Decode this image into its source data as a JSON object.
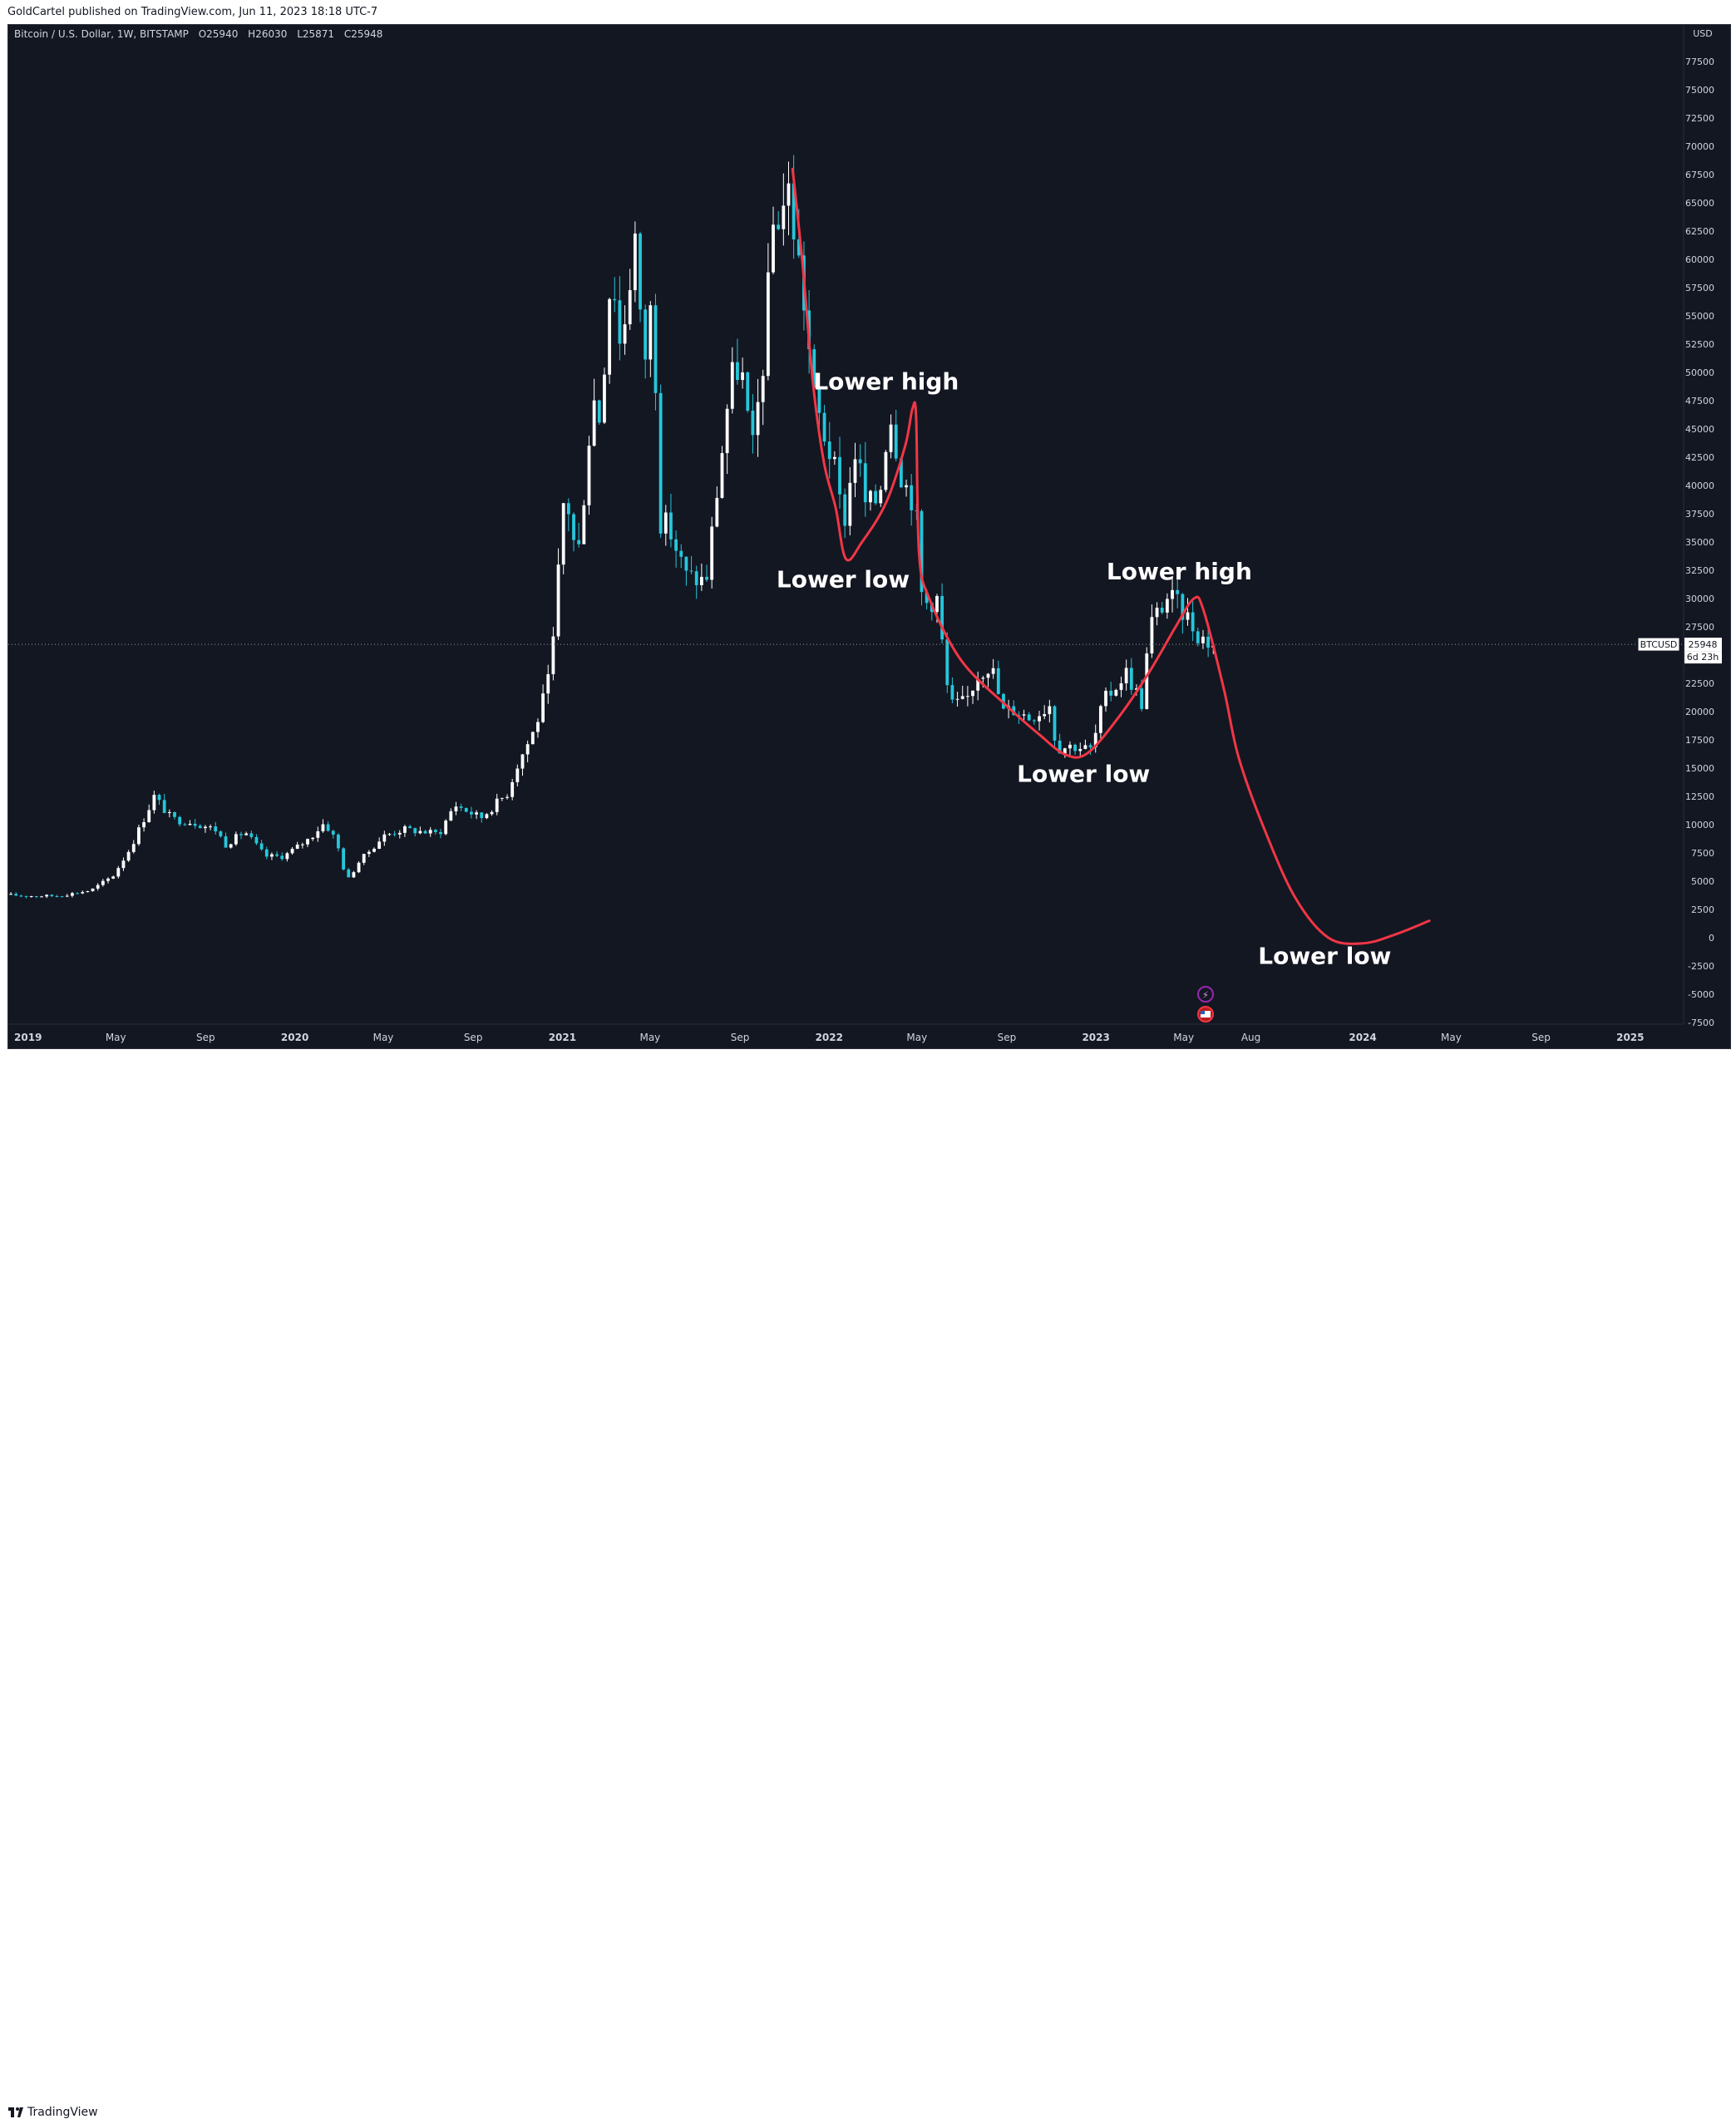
{
  "header": {
    "attribution": "GoldCartel published on TradingView.com, Jun 11, 2023 18:18 UTC-7"
  },
  "symbol": {
    "name": "Bitcoin / U.S. Dollar, 1W, BITSTAMP",
    "open": "O25940",
    "high": "H26030",
    "low": "L25871",
    "close": "C25948"
  },
  "price_label": {
    "ticker": "BTCUSD",
    "price": "25948",
    "countdown": "6d 23h"
  },
  "footer": {
    "brand": "TradingView"
  },
  "colors": {
    "background": "#131722",
    "up_candle": "#ffffff",
    "down_candle": "#26c6da",
    "projection": "#f23645",
    "text": "#d1d4dc"
  },
  "chart_data": {
    "type": "candlestick",
    "timeframe": "1W",
    "currency": "USD",
    "ylim": [
      -7500,
      80000
    ],
    "y_ticks": [
      -7500,
      -5000,
      -2500,
      0,
      2500,
      5000,
      7500,
      10000,
      12500,
      15000,
      17500,
      20000,
      22500,
      25000,
      27500,
      30000,
      32500,
      35000,
      37500,
      40000,
      42500,
      45000,
      47500,
      50000,
      52500,
      55000,
      57500,
      60000,
      62500,
      65000,
      67500,
      70000,
      72500,
      75000,
      77500
    ],
    "x_ticks": [
      "2019",
      "May",
      "Sep",
      "2020",
      "May",
      "Sep",
      "2021",
      "May",
      "Sep",
      "2022",
      "May",
      "Sep",
      "2023",
      "May",
      "Aug",
      "2024",
      "May",
      "Sep",
      "2025"
    ],
    "x_tick_dates": [
      "2019-01-01",
      "2019-05-01",
      "2019-09-01",
      "2020-01-01",
      "2020-05-01",
      "2020-09-01",
      "2021-01-01",
      "2021-05-01",
      "2021-09-01",
      "2022-01-01",
      "2022-05-01",
      "2022-09-01",
      "2023-01-01",
      "2023-05-01",
      "2023-08-01",
      "2024-01-01",
      "2024-05-01",
      "2024-09-01",
      "2025-01-01"
    ],
    "x_range": [
      "2018-12-05",
      "2025-03-15"
    ],
    "current_price": 25948,
    "price_anchors": [
      [
        "2018-12-05",
        3800
      ],
      [
        "2019-01-01",
        3700
      ],
      [
        "2019-02-15",
        3700
      ],
      [
        "2019-04-01",
        4200
      ],
      [
        "2019-05-01",
        5500
      ],
      [
        "2019-05-25",
        8000
      ],
      [
        "2019-06-26",
        12500
      ],
      [
        "2019-07-20",
        10500
      ],
      [
        "2019-08-20",
        10200
      ],
      [
        "2019-09-20",
        9500
      ],
      [
        "2019-10-01",
        8200
      ],
      [
        "2019-10-28",
        9400
      ],
      [
        "2019-11-25",
        7200
      ],
      [
        "2019-12-20",
        7200
      ],
      [
        "2020-01-25",
        8800
      ],
      [
        "2020-02-14",
        10200
      ],
      [
        "2020-03-01",
        8600
      ],
      [
        "2020-03-16",
        5000
      ],
      [
        "2020-04-01",
        6700
      ],
      [
        "2020-05-05",
        9000
      ],
      [
        "2020-06-01",
        9600
      ],
      [
        "2020-07-20",
        9200
      ],
      [
        "2020-08-10",
        11800
      ],
      [
        "2020-09-15",
        10600
      ],
      [
        "2020-10-21",
        12800
      ],
      [
        "2020-11-05",
        15500
      ],
      [
        "2020-11-28",
        18500
      ],
      [
        "2020-12-20",
        23500
      ],
      [
        "2021-01-08",
        40000
      ],
      [
        "2021-01-25",
        33000
      ],
      [
        "2021-02-15",
        48000
      ],
      [
        "2021-02-25",
        46000
      ],
      [
        "2021-03-13",
        60000
      ],
      [
        "2021-03-25",
        52000
      ],
      [
        "2021-04-14",
        62000
      ],
      [
        "2021-04-25",
        50000
      ],
      [
        "2021-05-08",
        57000
      ],
      [
        "2021-05-19",
        37000
      ],
      [
        "2021-06-01",
        36000
      ],
      [
        "2021-06-22",
        32000
      ],
      [
        "2021-07-20",
        31500
      ],
      [
        "2021-08-05",
        40000
      ],
      [
        "2021-08-22",
        49000
      ],
      [
        "2021-09-05",
        51000
      ],
      [
        "2021-09-21",
        42500
      ],
      [
        "2021-10-06",
        51000
      ],
      [
        "2021-10-20",
        63000
      ],
      [
        "2021-11-10",
        66000
      ],
      [
        "2021-11-30",
        57000
      ],
      [
        "2021-12-15",
        47500
      ],
      [
        "2022-01-10",
        42000
      ],
      [
        "2022-01-24",
        36500
      ],
      [
        "2022-02-10",
        43500
      ],
      [
        "2022-02-24",
        38000
      ],
      [
        "2022-03-14",
        39000
      ],
      [
        "2022-03-28",
        47000
      ],
      [
        "2022-04-15",
        40500
      ],
      [
        "2022-05-02",
        38500
      ],
      [
        "2022-05-12",
        29500
      ],
      [
        "2022-06-01",
        30000
      ],
      [
        "2022-06-18",
        20500
      ],
      [
        "2022-07-10",
        20800
      ],
      [
        "2022-07-28",
        23500
      ],
      [
        "2022-08-14",
        24200
      ],
      [
        "2022-08-30",
        20000
      ],
      [
        "2022-09-15",
        20200
      ],
      [
        "2022-10-05",
        19500
      ],
      [
        "2022-10-28",
        20300
      ],
      [
        "2022-11-06",
        21000
      ],
      [
        "2022-11-10",
        16800
      ],
      [
        "2022-12-05",
        17000
      ],
      [
        "2022-12-30",
        16600
      ],
      [
        "2023-01-14",
        20800
      ],
      [
        "2023-02-15",
        23500
      ],
      [
        "2023-03-10",
        20500
      ],
      [
        "2023-03-18",
        27500
      ],
      [
        "2023-04-14",
        30300
      ],
      [
        "2023-05-08",
        28500
      ],
      [
        "2023-05-25",
        26800
      ],
      [
        "2023-06-11",
        25948
      ]
    ],
    "projection": {
      "color": "#f23645",
      "points": [
        [
          "2021-11-12",
          68000
        ],
        [
          "2021-11-25",
          60000
        ],
        [
          "2021-12-10",
          49000
        ],
        [
          "2021-12-25",
          42000
        ],
        [
          "2022-01-10",
          38000
        ],
        [
          "2022-01-24",
          33500
        ],
        [
          "2022-02-15",
          35000
        ],
        [
          "2022-03-20",
          38500
        ],
        [
          "2022-04-15",
          43500
        ],
        [
          "2022-04-25",
          46800
        ],
        [
          "2022-04-30",
          46000
        ],
        [
          "2022-05-04",
          34000
        ],
        [
          "2022-05-18",
          30000
        ],
        [
          "2022-07-01",
          24500
        ],
        [
          "2022-09-01",
          20500
        ],
        [
          "2022-10-15",
          18000
        ],
        [
          "2022-11-20",
          16200
        ],
        [
          "2022-12-20",
          16300
        ],
        [
          "2023-02-01",
          19500
        ],
        [
          "2023-03-15",
          23500
        ],
        [
          "2023-04-20",
          27500
        ],
        [
          "2023-05-15",
          30000
        ],
        [
          "2023-05-28",
          29000
        ],
        [
          "2023-06-25",
          22000
        ],
        [
          "2023-07-15",
          16000
        ],
        [
          "2023-08-20",
          9500
        ],
        [
          "2023-10-01",
          3500
        ],
        [
          "2023-11-15",
          0
        ],
        [
          "2024-01-01",
          -500
        ],
        [
          "2024-02-15",
          300
        ],
        [
          "2024-04-01",
          1500
        ]
      ]
    },
    "annotations": [
      {
        "text": "Lower high",
        "date": "2022-03-20",
        "value": 48500
      },
      {
        "text": "Lower low",
        "date": "2022-01-20",
        "value": 31000
      },
      {
        "text": "Lower high",
        "date": "2023-04-25",
        "value": 31700
      },
      {
        "text": "Lower low",
        "date": "2022-12-15",
        "value": 13800
      },
      {
        "text": "Lower low",
        "date": "2023-11-10",
        "value": -2300
      }
    ]
  }
}
